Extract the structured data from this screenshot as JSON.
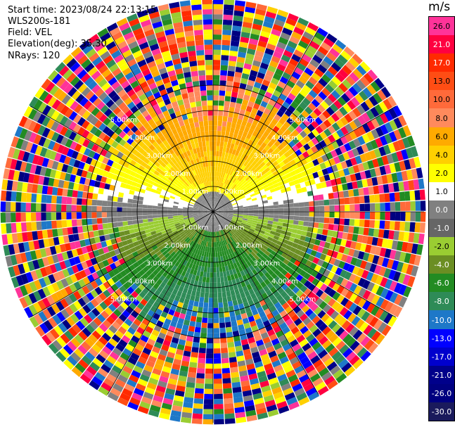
{
  "header": {
    "start_time": "Start time: 2023/08/24 22:13:15",
    "site": "WLS200s-181",
    "field": "Field: VEL",
    "elevation": "Elevation(deg): 35.30",
    "nrays": "NRays: 120"
  },
  "colorbar": {
    "title": "m/s",
    "labels": [
      "26.0",
      "21.0",
      "17.0",
      "13.0",
      "10.0",
      "8.0",
      "6.0",
      "4.0",
      "2.0",
      "1.0",
      "0.0",
      "-1.0",
      "-2.0",
      "-4.0",
      "-6.0",
      "-8.0",
      "-10.0",
      "-13.0",
      "-17.0",
      "-21.0",
      "-26.0",
      "-30.0"
    ],
    "colors": [
      "#ff3399",
      "#ff0040",
      "#ff2a00",
      "#ff4d14",
      "#ff6a3a",
      "#ff8a5c",
      "#ffaa00",
      "#ffd000",
      "#ffff00",
      "#ffffff",
      "#808080",
      "#666666",
      "#9acd32",
      "#6b8e23",
      "#228b22",
      "#2e8b57",
      "#1e78c8",
      "#0000ff",
      "#0000cd",
      "#00008b",
      "#000080",
      "#1a1a5c"
    ]
  },
  "chart_data": {
    "type": "heatmap",
    "projection": "polar PPI",
    "rays": 120,
    "range_rings_km": [
      1.0,
      2.0,
      3.0,
      4.0,
      5.0
    ],
    "ring_label_text": [
      "1.00km",
      "2.00km",
      "3.00km",
      "4.00km",
      "5.00km"
    ],
    "max_range_km": 5.0,
    "velocity_pattern": {
      "north_sector": "positive velocities (2 to 8 m/s)",
      "south_sector": "negative velocities (-2 to -10 m/s)",
      "east_west": "near zero (about 0 m/s)",
      "far_range": "noisy mixed values"
    }
  }
}
